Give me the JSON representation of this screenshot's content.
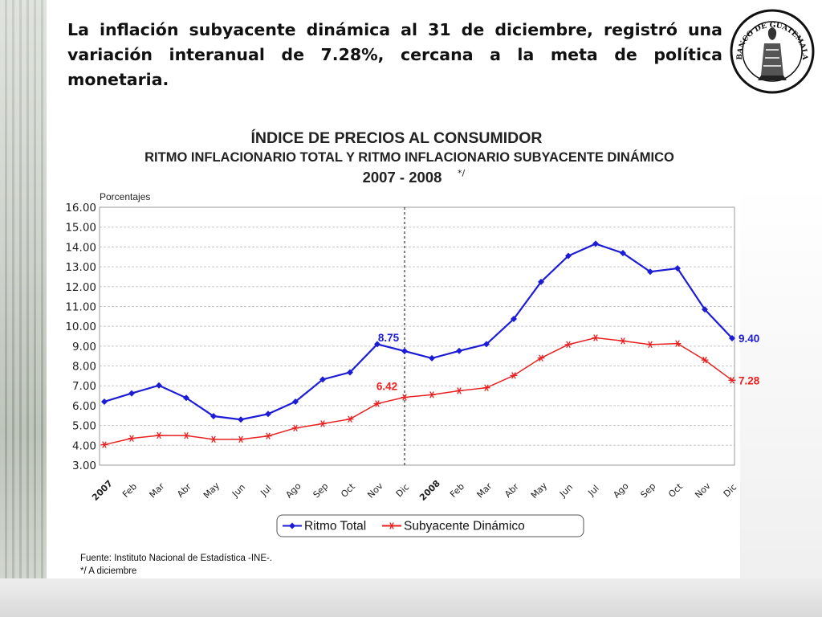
{
  "headline": "La inflación subyacente dinámica al 31 de diciembre, registró una variación interanual de 7.28%, cercana a la meta de política monetaria.",
  "logo": {
    "text": "BANCO DE GUATEMALA"
  },
  "chart_data": {
    "type": "line",
    "title": "ÍNDICE DE PRECIOS AL CONSUMIDOR",
    "subtitle": "RITMO INFLACIONARIO TOTAL Y RITMO INFLACIONARIO SUBYACENTE DINÁMICO",
    "period": "2007 - 2008",
    "period_note": "*/",
    "ylabel": "Porcentajes",
    "ylim": [
      3,
      16
    ],
    "yticks": [
      "16.00",
      "15.00",
      "14.00",
      "13.00",
      "12.00",
      "11.00",
      "10.00",
      "9.00",
      "8.00",
      "7.00",
      "6.00",
      "5.00",
      "4.00",
      "3.00"
    ],
    "grid": true,
    "categories": [
      "2007",
      "Feb",
      "Mar",
      "Abr",
      "May",
      "Jun",
      "Jul",
      "Ago",
      "Sep",
      "Oct",
      "Nov",
      "Dic",
      "2008",
      "Feb",
      "Mar",
      "Abr",
      "May",
      "Jun",
      "Jul",
      "Ago",
      "Sep",
      "Oct",
      "Nov",
      "Dic"
    ],
    "year_labels": [
      0,
      12
    ],
    "year_color": "#e01818",
    "divider_after_index": 11,
    "series": [
      {
        "name": "Ritmo Total",
        "color": "#1c1cd6",
        "marker": "diamond",
        "values": [
          6.2,
          6.62,
          7.02,
          6.39,
          5.47,
          5.3,
          5.58,
          6.2,
          7.32,
          7.68,
          9.1,
          8.75,
          8.39,
          8.76,
          9.1,
          10.37,
          12.24,
          13.55,
          14.16,
          13.69,
          12.75,
          12.92,
          10.85,
          9.4
        ]
      },
      {
        "name": "Subyacente Dinámico",
        "color": "#e82020",
        "marker": "star",
        "values": [
          4.03,
          4.35,
          4.5,
          4.49,
          4.3,
          4.3,
          4.47,
          4.87,
          5.09,
          5.32,
          6.1,
          6.42,
          6.55,
          6.75,
          6.9,
          7.52,
          8.4,
          9.08,
          9.42,
          9.26,
          9.08,
          9.13,
          8.3,
          7.28
        ]
      }
    ],
    "annotations": [
      {
        "series": 0,
        "index": 11,
        "text": "8.75"
      },
      {
        "series": 1,
        "index": 11,
        "text": "6.42"
      },
      {
        "series": 0,
        "index": 23,
        "text": "9.40"
      },
      {
        "series": 1,
        "index": 23,
        "text": "7.28"
      }
    ],
    "legend_position": "bottom"
  },
  "source": {
    "line1": "Fuente:  Instituto Nacional de Estadística -INE-.",
    "line2": "*/ A diciembre"
  }
}
